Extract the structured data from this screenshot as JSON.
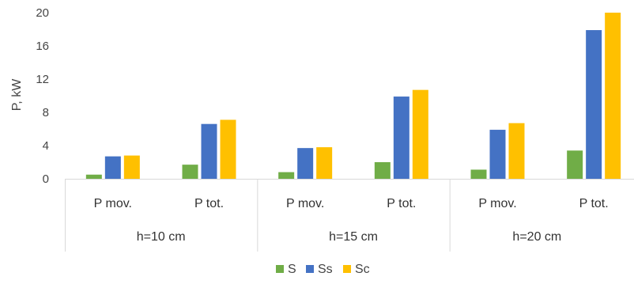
{
  "chart_data": {
    "type": "bar",
    "ylabel": "P, kW",
    "xlabel": "",
    "ylim": [
      0,
      20
    ],
    "yticks": [
      "0",
      "4",
      "8",
      "12",
      "16",
      "20"
    ],
    "groups": [
      {
        "label": "h=10 cm",
        "categories": [
          "P mov.",
          "P tot."
        ]
      },
      {
        "label": "h=15 cm",
        "categories": [
          "P mov.",
          "P tot."
        ]
      },
      {
        "label": "h=20 cm",
        "categories": [
          "P mov.",
          "P tot."
        ]
      }
    ],
    "series": [
      {
        "name": "S",
        "color": "#70ad47",
        "values": [
          0.5,
          1.7,
          0.8,
          2.0,
          1.1,
          3.4
        ]
      },
      {
        "name": "Ss",
        "color": "#4472c4",
        "values": [
          2.7,
          6.6,
          3.7,
          9.9,
          5.9,
          17.9
        ]
      },
      {
        "name": "Sc",
        "color": "#ffc000",
        "values": [
          2.8,
          7.1,
          3.8,
          10.7,
          6.7,
          20.0
        ]
      }
    ],
    "grid": false,
    "legend_position": "bottom"
  }
}
